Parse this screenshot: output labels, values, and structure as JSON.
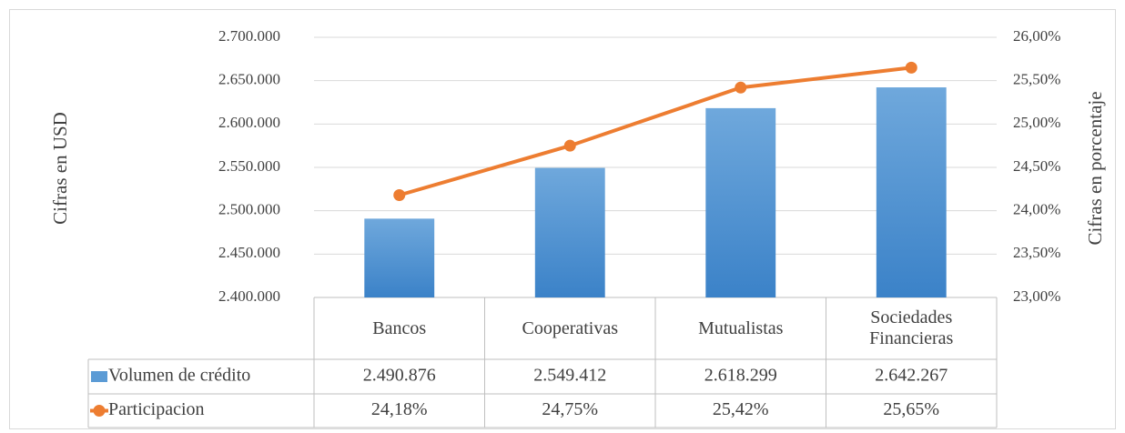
{
  "chart_data": {
    "type": "bar",
    "categories": [
      "Bancos",
      "Cooperativas",
      "Mutualistas",
      "Sociedades Financieras"
    ],
    "series": [
      {
        "name": "Volumen de crédito",
        "type": "bar",
        "color": "#5b9bd5",
        "values": [
          2490876,
          2549412,
          2618299,
          2642267
        ],
        "value_labels": [
          "2.490.876",
          "2.549.412",
          "2.618.299",
          "2.642.267"
        ]
      },
      {
        "name": "Participacion",
        "type": "line",
        "axis": "y2",
        "color": "#ed7d31",
        "values": [
          24.18,
          24.75,
          25.42,
          25.65
        ],
        "value_labels": [
          "24,18%",
          "24,75%",
          "25,42%",
          "25,65%"
        ]
      }
    ],
    "ylim": [
      2400000,
      2700000
    ],
    "yticks": [
      {
        "value": 2400000,
        "label": "2.400.000"
      },
      {
        "value": 2450000,
        "label": "2.450.000"
      },
      {
        "value": 2500000,
        "label": "2.500.000"
      },
      {
        "value": 2550000,
        "label": "2.550.000"
      },
      {
        "value": 2600000,
        "label": "2.600.000"
      },
      {
        "value": 2650000,
        "label": "2.650.000"
      },
      {
        "value": 2700000,
        "label": "2.700.000"
      }
    ],
    "y2lim": [
      23,
      26
    ],
    "y2ticks": [
      {
        "value": 23,
        "label": "23,00%"
      },
      {
        "value": 23.5,
        "label": "23,50%"
      },
      {
        "value": 24,
        "label": "24,00%"
      },
      {
        "value": 24.5,
        "label": "24,50%"
      },
      {
        "value": 25,
        "label": "25,00%"
      },
      {
        "value": 25.5,
        "label": "25,50%"
      },
      {
        "value": 26,
        "label": "26,00%"
      }
    ],
    "y_label": "Cifras en USD",
    "y2_label": "Cifras en porcentaje",
    "grid": true
  }
}
